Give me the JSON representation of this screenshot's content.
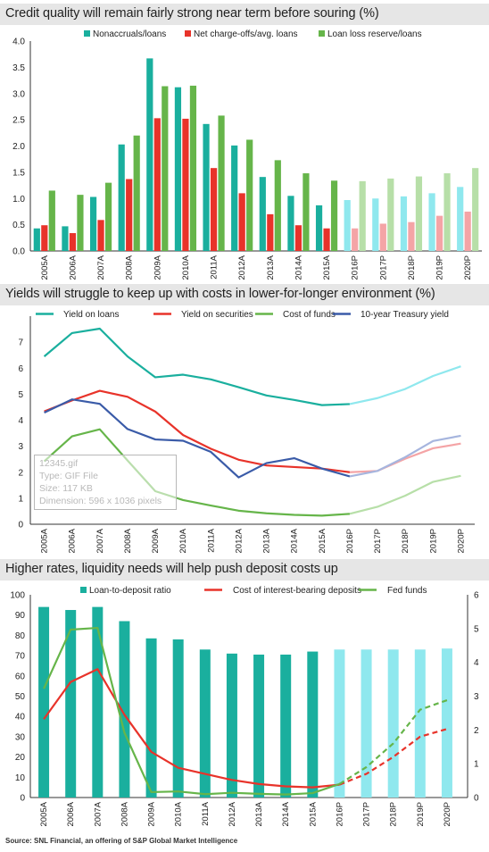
{
  "chart_data": [
    {
      "type": "bar",
      "title": "Credit quality will remain fairly strong near term before souring (%)",
      "categories": [
        "2005A",
        "2006A",
        "2007A",
        "2008A",
        "2009A",
        "2010A",
        "2011A",
        "2012A",
        "2013A",
        "2014A",
        "2015A",
        "2016P",
        "2017P",
        "2018P",
        "2019P",
        "2020P"
      ],
      "projected_from_index": 11,
      "ylim": [
        0,
        4.0
      ],
      "yticks": [
        "0.0",
        "0.5",
        "1.0",
        "1.5",
        "2.0",
        "2.5",
        "3.0",
        "3.5",
        "4.0"
      ],
      "legend_position": "top",
      "series": [
        {
          "name": "Nonaccruals/loans",
          "color": "#1aaf9e",
          "color_projected": "#8fe8ee",
          "values": [
            0.43,
            0.47,
            1.03,
            2.03,
            3.67,
            3.12,
            2.42,
            2.01,
            1.41,
            1.05,
            0.87,
            0.97,
            1.0,
            1.04,
            1.1,
            1.22
          ]
        },
        {
          "name": "Net charge-offs/avg. loans",
          "color": "#e8332a",
          "color_projected": "#f4a4a6",
          "values": [
            0.49,
            0.34,
            0.59,
            1.37,
            2.53,
            2.52,
            1.58,
            1.1,
            0.7,
            0.49,
            0.43,
            0.43,
            0.52,
            0.55,
            0.67,
            0.75
          ]
        },
        {
          "name": "Loan loss reserve/loans",
          "color": "#66b54a",
          "color_projected": "#b7dfa8",
          "values": [
            1.15,
            1.07,
            1.3,
            2.2,
            3.14,
            3.15,
            2.58,
            2.12,
            1.73,
            1.48,
            1.34,
            1.33,
            1.38,
            1.42,
            1.48,
            1.58
          ]
        }
      ]
    },
    {
      "type": "line",
      "title": "Yields will struggle to keep up with costs in lower-for-longer environment (%)",
      "categories": [
        "2005A",
        "2006A",
        "2007A",
        "2008A",
        "2009A",
        "2010A",
        "2011A",
        "2012A",
        "2013A",
        "2014A",
        "2015A",
        "2016P",
        "2017P",
        "2018P",
        "2019P",
        "2020P"
      ],
      "projected_from_index": 11,
      "ylim": [
        0,
        8
      ],
      "yticks": [
        "0",
        "1",
        "2",
        "3",
        "4",
        "5",
        "6",
        "7"
      ],
      "legend_position": "top",
      "series": [
        {
          "name": "Yield on loans",
          "color": "#1aaf9e",
          "color_projected": "#8fe8ee",
          "values": [
            6.45,
            7.35,
            7.52,
            6.45,
            5.65,
            5.75,
            5.57,
            5.27,
            4.95,
            4.78,
            4.58,
            4.62,
            4.85,
            5.2,
            5.7,
            6.07
          ]
        },
        {
          "name": "Yield on securities",
          "color": "#e8332a",
          "color_projected": "#f4a4a6",
          "values": [
            4.34,
            4.76,
            5.13,
            4.9,
            4.33,
            3.43,
            2.9,
            2.48,
            2.26,
            2.2,
            2.14,
            2.0,
            2.05,
            2.52,
            2.92,
            3.1
          ]
        },
        {
          "name": "Cost of funds",
          "color": "#66b54a",
          "color_projected": "#b7dfa8",
          "values": [
            2.42,
            3.38,
            3.65,
            2.45,
            1.27,
            0.93,
            0.72,
            0.52,
            0.42,
            0.36,
            0.33,
            0.4,
            0.67,
            1.1,
            1.63,
            1.86
          ]
        },
        {
          "name": "10-year Treasury yield",
          "color": "#3a5ba8",
          "color_projected": "#a6b5de",
          "values": [
            4.29,
            4.8,
            4.63,
            3.66,
            3.26,
            3.21,
            2.78,
            1.8,
            2.35,
            2.54,
            2.14,
            1.84,
            2.05,
            2.58,
            3.2,
            3.4
          ]
        }
      ],
      "file_tooltip": [
        "12345.gif",
        "Type: GIF File",
        "Size: 117 KB",
        "Dimension: 596 x 1036 pixels"
      ]
    },
    {
      "type": "bar+line",
      "title": "Higher rates, liquidity needs will help push deposit costs up",
      "categories": [
        "2005A",
        "2006A",
        "2007A",
        "2008A",
        "2009A",
        "2010A",
        "2011A",
        "2012A",
        "2013A",
        "2014A",
        "2015A",
        "2016P",
        "2017P",
        "2018P",
        "2019P",
        "2020P"
      ],
      "projected_from_index": 11,
      "ylim": [
        0,
        100
      ],
      "yticks": [
        "0",
        "10",
        "20",
        "30",
        "40",
        "50",
        "60",
        "70",
        "80",
        "90",
        "100"
      ],
      "y2lim": [
        0,
        6
      ],
      "y2ticks": [
        "0",
        "1",
        "2",
        "3",
        "4",
        "5",
        "6"
      ],
      "legend_position": "top",
      "series": [
        {
          "name": "Loan-to-deposit ratio",
          "axis": "left",
          "kind": "bar",
          "color": "#1aaf9e",
          "color_projected": "#8fe8ee",
          "values": [
            94,
            92.5,
            94,
            87,
            78.5,
            78,
            73,
            71,
            70.5,
            70.5,
            72,
            73,
            73,
            73,
            73,
            73.5
          ]
        },
        {
          "name": "Cost of interest-bearing deposits",
          "axis": "right",
          "kind": "line",
          "color": "#e8332a",
          "color_projected": "#e8332a",
          "values": [
            2.32,
            3.42,
            3.8,
            2.45,
            1.35,
            0.88,
            0.7,
            0.52,
            0.4,
            0.33,
            0.3,
            0.38,
            0.7,
            1.2,
            1.8,
            2.03
          ]
        },
        {
          "name": "Fed funds",
          "axis": "right",
          "kind": "line",
          "color": "#66b54a",
          "color_projected": "#66b54a",
          "values": [
            3.22,
            4.97,
            5.02,
            1.92,
            0.16,
            0.18,
            0.1,
            0.14,
            0.11,
            0.09,
            0.13,
            0.4,
            0.9,
            1.6,
            2.6,
            2.88
          ]
        }
      ]
    }
  ],
  "source": "Source: SNL Financial, an offering of S&P Global Market Intelligence"
}
